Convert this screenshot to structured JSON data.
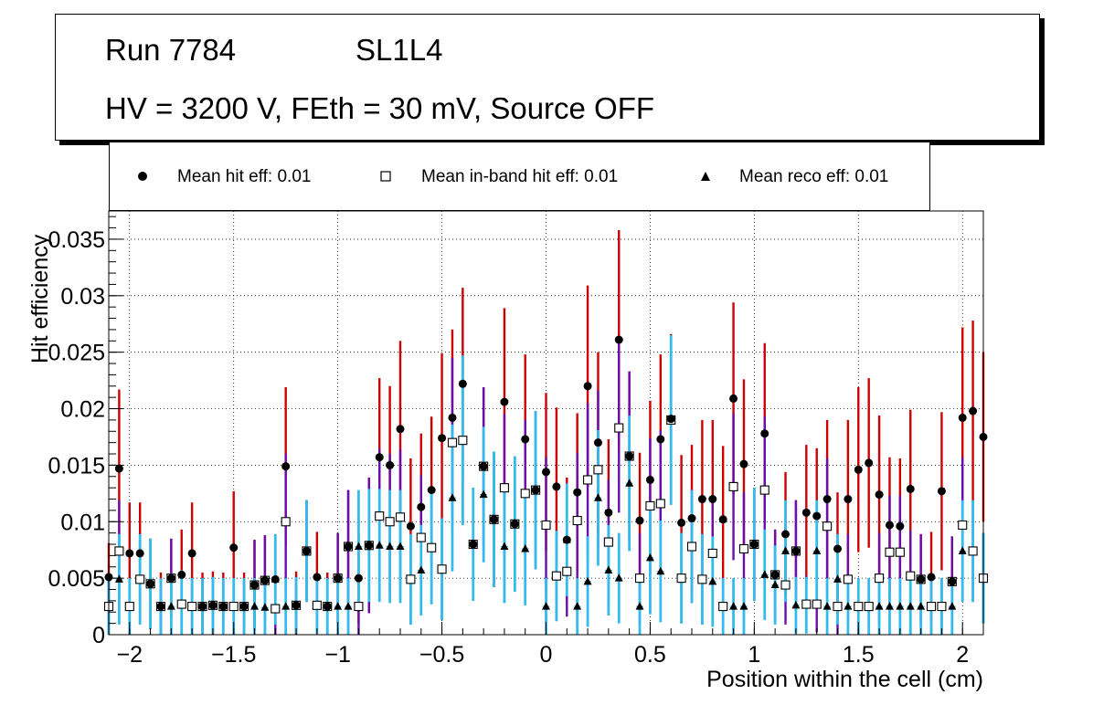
{
  "title": {
    "run": "Run 7784",
    "layer": "SL1L4",
    "conditions": "HV = 3200 V, FEth = 30 mV, Source OFF"
  },
  "legend": [
    {
      "marker": "circle",
      "label": "Mean hit  eff: 0.01"
    },
    {
      "marker": "open-square",
      "label": "Mean in-band hit eff: 0.01"
    },
    {
      "marker": "triangle",
      "label": "Mean reco eff: 0.01"
    }
  ],
  "colors": {
    "hit_err": "#cc0000",
    "inband_err": "#6a0dad",
    "reco_err": "#33bbee",
    "marker": "#000000"
  },
  "chart_data": {
    "type": "scatter",
    "xlabel": "Position within the cell (cm)",
    "ylabel": "Hit efficiency",
    "xlim": [
      -2.1,
      2.1
    ],
    "ylim": [
      0,
      0.0375
    ],
    "xticks": [
      -2,
      -1.5,
      -1,
      -0.5,
      0,
      0.5,
      1,
      1.5,
      2
    ],
    "xtick_labels": [
      "−2",
      "−1.5",
      "−1",
      "−0.5",
      "0",
      "0.5",
      "1",
      "1.5",
      "2"
    ],
    "yticks": [
      0,
      0.005,
      0.01,
      0.015,
      0.02,
      0.025,
      0.03,
      0.035
    ],
    "ytick_labels": [
      "0",
      "0.005",
      "0.01",
      "0.015",
      "0.02",
      "0.025",
      "0.03",
      "0.035"
    ],
    "grid": true,
    "series": [
      {
        "name": "Mean hit  eff: 0.01",
        "marker": "circle",
        "x": [
          -2.1,
          -2.05,
          -2,
          -1.95,
          -1.9,
          -1.85,
          -1.8,
          -1.75,
          -1.7,
          -1.65,
          -1.6,
          -1.55,
          -1.5,
          -1.45,
          -1.4,
          -1.35,
          -1.3,
          -1.25,
          -1.2,
          -1.15,
          -1.1,
          -1.05,
          -1,
          -0.95,
          -0.9,
          -0.85,
          -0.8,
          -0.75,
          -0.7,
          -0.65,
          -0.6,
          -0.55,
          -0.5,
          -0.45,
          -0.4,
          -0.35,
          -0.3,
          -0.25,
          -0.2,
          -0.15,
          -0.1,
          -0.05,
          0,
          0.05,
          0.1,
          0.15,
          0.2,
          0.25,
          0.3,
          0.35,
          0.4,
          0.45,
          0.5,
          0.55,
          0.6,
          0.65,
          0.7,
          0.75,
          0.8,
          0.85,
          0.9,
          0.95,
          1,
          1.05,
          1.1,
          1.15,
          1.2,
          1.25,
          1.3,
          1.35,
          1.4,
          1.45,
          1.5,
          1.55,
          1.6,
          1.65,
          1.7,
          1.75,
          1.8,
          1.85,
          1.9,
          1.95,
          2,
          2.05,
          2.1
        ],
        "y": [
          0.0051,
          0.0147,
          0.0072,
          0.0072,
          0.0045,
          0.0025,
          0.005,
          0.0053,
          0.0072,
          0.0025,
          0.0026,
          0.0025,
          0.0077,
          0.0025,
          0.0044,
          0.0048,
          0.0049,
          0.0149,
          0.0026,
          0.0074,
          0.0051,
          0.0025,
          0.005,
          0.0078,
          0.005,
          0.0079,
          0.0157,
          0.015,
          0.0182,
          0.0096,
          0.0113,
          0.0128,
          0.0174,
          0.0192,
          0.0222,
          0.008,
          0.0149,
          0.0102,
          0.0206,
          0.0098,
          0.0173,
          0.0128,
          0.0144,
          0.0131,
          0.0084,
          0.0126,
          0.022,
          0.017,
          0.0108,
          0.0261,
          0.0158,
          0.0101,
          0.0137,
          0.0173,
          0.0191,
          0.0099,
          0.0103,
          0.012,
          0.012,
          0.0102,
          0.0209,
          0.0151,
          0.008,
          0.0178,
          0.0053,
          0.0089,
          0.0074,
          0.0108,
          0.0105,
          0.012,
          0.0076,
          0.012,
          0.0146,
          0.0152,
          0.0124,
          0.0097,
          0.0096,
          0.0129,
          0.0049,
          0.0051,
          0.0127,
          0.0047,
          0.0192,
          0.0198,
          0.0175
        ],
        "err": [
          0.003,
          0.007,
          0.0045,
          0.0045,
          0.004,
          0.003,
          0.0035,
          0.004,
          0.0045,
          0.003,
          0.003,
          0.003,
          0.005,
          0.003,
          0.004,
          0.004,
          0.004,
          0.007,
          0.003,
          0.0045,
          0.004,
          0.003,
          0.004,
          0.005,
          0.004,
          0.006,
          0.007,
          0.007,
          0.0078,
          0.006,
          0.0065,
          0.0065,
          0.0075,
          0.0078,
          0.0085,
          0.005,
          0.007,
          0.006,
          0.0083,
          0.006,
          0.0075,
          0.007,
          0.007,
          0.007,
          0.0055,
          0.007,
          0.0089,
          0.008,
          0.0065,
          0.0097,
          0.0075,
          0.006,
          0.007,
          0.0075,
          0.0075,
          0.006,
          0.0065,
          0.007,
          0.007,
          0.0065,
          0.0085,
          0.0075,
          0.005,
          0.008,
          0.004,
          0.0055,
          0.0045,
          0.006,
          0.006,
          0.007,
          0.005,
          0.007,
          0.0073,
          0.0075,
          0.007,
          0.006,
          0.006,
          0.007,
          0.004,
          0.004,
          0.007,
          0.004,
          0.008,
          0.008,
          0.0075
        ]
      },
      {
        "name": "Mean in-band hit eff: 0.01",
        "marker": "open-square",
        "x": [
          -2.1,
          -2.05,
          -2,
          -1.95,
          -1.9,
          -1.85,
          -1.8,
          -1.75,
          -1.7,
          -1.65,
          -1.6,
          -1.55,
          -1.5,
          -1.45,
          -1.4,
          -1.35,
          -1.3,
          -1.25,
          -1.2,
          -1.15,
          -1.1,
          -1.05,
          -1,
          -0.95,
          -0.9,
          -0.85,
          -0.8,
          -0.75,
          -0.7,
          -0.65,
          -0.6,
          -0.55,
          -0.5,
          -0.45,
          -0.4,
          -0.35,
          -0.3,
          -0.25,
          -0.2,
          -0.15,
          -0.1,
          -0.05,
          0,
          0.05,
          0.1,
          0.15,
          0.2,
          0.25,
          0.3,
          0.35,
          0.4,
          0.45,
          0.5,
          0.55,
          0.6,
          0.65,
          0.7,
          0.75,
          0.8,
          0.85,
          0.9,
          0.95,
          1,
          1.05,
          1.1,
          1.15,
          1.2,
          1.25,
          1.3,
          1.35,
          1.4,
          1.45,
          1.5,
          1.55,
          1.6,
          1.65,
          1.7,
          1.75,
          1.8,
          1.85,
          1.9,
          1.95,
          2,
          2.05,
          2.1
        ],
        "y": [
          0.0025,
          0.0074,
          0.0025,
          0.0049,
          0.0045,
          0.0025,
          0.005,
          0.0027,
          0.0025,
          0.0025,
          0.0026,
          0.0025,
          0.0025,
          0.0025,
          0.0044,
          0.0048,
          0.0023,
          0.01,
          0.0026,
          0.0074,
          0.0026,
          0.0025,
          0.005,
          0.0078,
          0.0025,
          0.0079,
          0.0105,
          0.01,
          0.0104,
          0.0049,
          0.0086,
          0.0077,
          0.0058,
          0.017,
          0.0172,
          0.008,
          0.0149,
          0.0102,
          0.013,
          0.0098,
          0.0125,
          0.0128,
          0.0097,
          0.0052,
          0.0056,
          0.0101,
          0.0137,
          0.0146,
          0.0082,
          0.0183,
          0.0158,
          0.005,
          0.0114,
          0.0116,
          0.019,
          0.005,
          0.0078,
          0.0049,
          0.0072,
          0.0025,
          0.0131,
          0.0076,
          0.008,
          0.0128,
          0.0053,
          0.0044,
          0.0074,
          0.0027,
          0.0027,
          0.0096,
          0.0025,
          0.0049,
          0.0025,
          0.0025,
          0.005,
          0.0073,
          0.0073,
          0.0052,
          0.0049,
          0.0025,
          0.0025,
          0.0047,
          0.0097,
          0.0074,
          0.005
        ],
        "err": [
          0.0025,
          0.0045,
          0.0025,
          0.004,
          0.004,
          0.0025,
          0.0035,
          0.003,
          0.0025,
          0.0025,
          0.0025,
          0.0025,
          0.0025,
          0.0025,
          0.004,
          0.004,
          0.0025,
          0.006,
          0.0025,
          0.0045,
          0.0025,
          0.0025,
          0.004,
          0.005,
          0.0025,
          0.006,
          0.006,
          0.006,
          0.006,
          0.004,
          0.0055,
          0.005,
          0.0045,
          0.0075,
          0.0075,
          0.005,
          0.007,
          0.006,
          0.0065,
          0.006,
          0.0065,
          0.007,
          0.006,
          0.004,
          0.004,
          0.006,
          0.0068,
          0.007,
          0.0055,
          0.0075,
          0.0075,
          0.004,
          0.006,
          0.0065,
          0.0075,
          0.004,
          0.005,
          0.004,
          0.005,
          0.0025,
          0.0065,
          0.005,
          0.005,
          0.0065,
          0.004,
          0.0035,
          0.0045,
          0.0025,
          0.0025,
          0.006,
          0.0025,
          0.004,
          0.0025,
          0.0025,
          0.004,
          0.005,
          0.005,
          0.004,
          0.004,
          0.0025,
          0.0025,
          0.004,
          0.006,
          0.0045,
          0.004
        ]
      },
      {
        "name": "Mean reco eff: 0.01",
        "marker": "triangle",
        "x": [
          -2.1,
          -2.05,
          -2,
          -1.95,
          -1.9,
          -1.85,
          -1.8,
          -1.75,
          -1.7,
          -1.65,
          -1.6,
          -1.55,
          -1.5,
          -1.45,
          -1.4,
          -1.35,
          -1.3,
          -1.25,
          -1.2,
          -1.15,
          -1.1,
          -1.05,
          -1,
          -0.95,
          -0.9,
          -0.85,
          -0.8,
          -0.75,
          -0.7,
          -0.65,
          -0.6,
          -0.55,
          -0.5,
          -0.45,
          -0.4,
          -0.35,
          -0.3,
          -0.25,
          -0.2,
          -0.15,
          -0.1,
          -0.05,
          0,
          0.05,
          0.1,
          0.15,
          0.2,
          0.25,
          0.3,
          0.35,
          0.4,
          0.45,
          0.5,
          0.55,
          0.6,
          0.65,
          0.7,
          0.75,
          0.8,
          0.85,
          0.9,
          0.95,
          1,
          1.05,
          1.1,
          1.15,
          1.2,
          1.25,
          1.3,
          1.35,
          1.4,
          1.45,
          1.5,
          1.55,
          1.6,
          1.65,
          1.7,
          1.75,
          1.8,
          1.85,
          1.9,
          1.95,
          2,
          2.05,
          2.1
        ],
        "y": [
          0.0025,
          0.0049,
          0.0025,
          0.0049,
          0.0045,
          0.0025,
          0.0025,
          0.0027,
          0.0025,
          0.0025,
          0.0026,
          0.0025,
          0.0025,
          0.0025,
          0.0025,
          0.0024,
          0.0049,
          0.0025,
          0.0026,
          0.0074,
          0.0026,
          0.0025,
          0.0025,
          0.0025,
          0.0078,
          0.0079,
          0.0079,
          0.0078,
          0.0078,
          0.0049,
          0.0057,
          0.0077,
          0.0058,
          0.0121,
          0.0172,
          0.008,
          0.0124,
          0.0102,
          0.0078,
          0.0098,
          0.0076,
          0.0128,
          0.0025,
          0.0052,
          0.0084,
          0.0025,
          0.0047,
          0.0121,
          0.0057,
          0.005,
          0.0134,
          0.0025,
          0.0068,
          0.0056,
          0.019,
          0.005,
          0.0078,
          0.0049,
          0.0047,
          0.0025,
          0.0025,
          0.0025,
          0.008,
          0.0053,
          0.0044,
          0.0074,
          0.0026,
          0.0026,
          0.0074,
          0.0025,
          0.0049,
          0.0025,
          0.0025,
          0.0025,
          0.0025,
          0.0025,
          0.0025,
          0.0025,
          0.0025,
          0.0025,
          0.0025,
          0.0025,
          0.0074,
          0.0074,
          0.005
        ],
        "err": [
          0.0025,
          0.004,
          0.0025,
          0.004,
          0.004,
          0.0025,
          0.0025,
          0.003,
          0.0025,
          0.0025,
          0.0025,
          0.0025,
          0.0025,
          0.0025,
          0.0025,
          0.0025,
          0.004,
          0.0025,
          0.0025,
          0.0045,
          0.0025,
          0.0025,
          0.0025,
          0.0025,
          0.005,
          0.005,
          0.005,
          0.005,
          0.005,
          0.004,
          0.004,
          0.005,
          0.0045,
          0.0065,
          0.0075,
          0.005,
          0.006,
          0.006,
          0.005,
          0.006,
          0.005,
          0.007,
          0.0025,
          0.004,
          0.005,
          0.0025,
          0.004,
          0.006,
          0.004,
          0.004,
          0.006,
          0.0025,
          0.005,
          0.0045,
          0.0075,
          0.004,
          0.005,
          0.004,
          0.004,
          0.0025,
          0.0025,
          0.0025,
          0.005,
          0.004,
          0.0035,
          0.0045,
          0.0025,
          0.0025,
          0.0045,
          0.0025,
          0.004,
          0.0025,
          0.0025,
          0.0025,
          0.0025,
          0.0025,
          0.0025,
          0.0025,
          0.0025,
          0.0025,
          0.0025,
          0.0025,
          0.0045,
          0.0045,
          0.004
        ]
      }
    ]
  }
}
